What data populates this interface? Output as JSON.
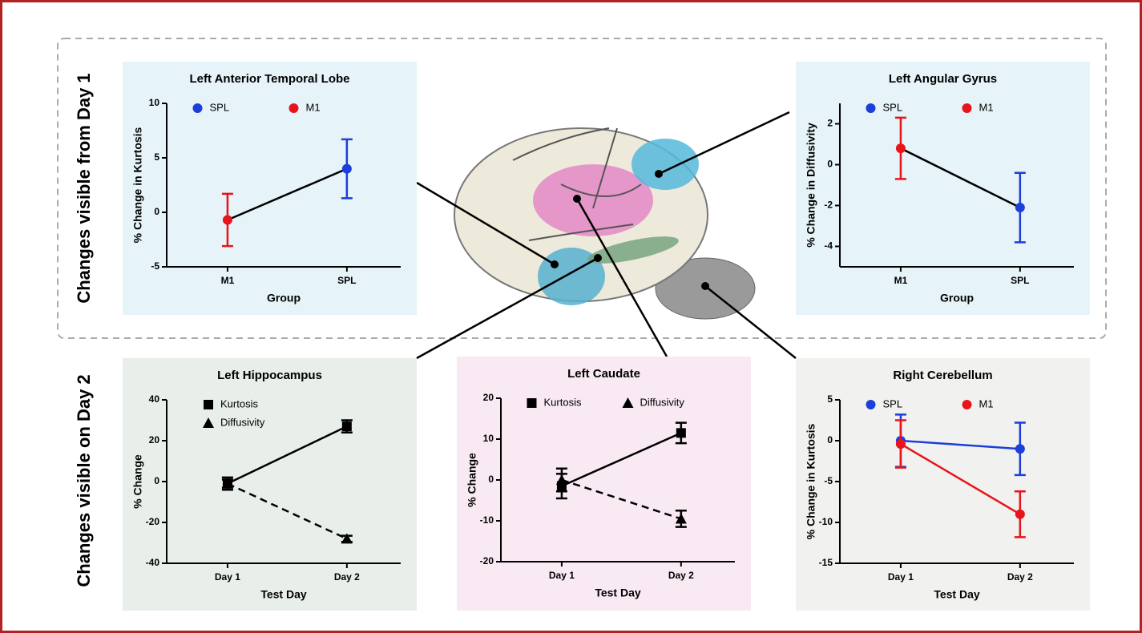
{
  "sections": [
    "Changes visible from Day 1",
    "Changes visible on Day 2"
  ],
  "chart_data": [
    {
      "type": "line",
      "title": "Left Anterior Temporal Lobe",
      "xlabel": "Group",
      "ylabel": "% Change in Kurtosis",
      "categories": [
        "M1",
        "SPL"
      ],
      "ylim": [
        -5,
        10
      ],
      "yticks": [
        -5,
        0,
        5,
        10
      ],
      "legend": "top",
      "line_color": "#000000",
      "series": [
        {
          "name": "SPL",
          "color": "#1b3fd8",
          "marker": "circle",
          "values": [
            null,
            4.0
          ],
          "errors": [
            null,
            2.7
          ]
        },
        {
          "name": "M1",
          "color": "#e8141b",
          "marker": "circle",
          "values": [
            -0.7,
            null
          ],
          "errors": [
            2.4,
            null
          ]
        }
      ]
    },
    {
      "type": "line",
      "title": "Left Angular Gyrus",
      "xlabel": "Group",
      "ylabel": "% Change in Diffusivity",
      "categories": [
        "M1",
        "SPL"
      ],
      "ylim": [
        -5,
        3
      ],
      "yticks": [
        -4,
        -2,
        0,
        2
      ],
      "legend": "top",
      "line_color": "#000000",
      "series": [
        {
          "name": "SPL",
          "color": "#1b3fd8",
          "marker": "circle",
          "values": [
            null,
            -2.1
          ],
          "errors": [
            null,
            1.7
          ]
        },
        {
          "name": "M1",
          "color": "#e8141b",
          "marker": "circle",
          "values": [
            0.8,
            null
          ],
          "errors": [
            1.5,
            null
          ]
        }
      ]
    },
    {
      "type": "line",
      "title": "Left Hippocampus",
      "xlabel": "Test Day",
      "ylabel": "% Change",
      "categories": [
        "Day 1",
        "Day 2"
      ],
      "ylim": [
        -40,
        40
      ],
      "yticks": [
        -40,
        -20,
        0,
        20,
        40
      ],
      "legend": "top-left",
      "series": [
        {
          "name": "Kurtosis",
          "color": "#000000",
          "marker": "square",
          "dash": false,
          "values": [
            -1,
            27
          ],
          "errors": [
            3,
            3
          ]
        },
        {
          "name": "Diffusivity",
          "color": "#000000",
          "marker": "triangle",
          "dash": true,
          "values": [
            -1,
            -28
          ],
          "errors": [
            2,
            1.5
          ]
        }
      ]
    },
    {
      "type": "line",
      "title": "Left Caudate",
      "xlabel": "Test Day",
      "ylabel": "% Change",
      "categories": [
        "Day 1",
        "Day 2"
      ],
      "ylim": [
        -20,
        20
      ],
      "yticks": [
        -20,
        -10,
        0,
        10,
        20
      ],
      "legend": "top",
      "series": [
        {
          "name": "Kurtosis",
          "color": "#000000",
          "marker": "square",
          "dash": false,
          "values": [
            -1.5,
            11.5
          ],
          "errors": [
            3,
            2.5
          ]
        },
        {
          "name": "Diffusivity",
          "color": "#000000",
          "marker": "triangle",
          "dash": true,
          "values": [
            0,
            -9.5
          ],
          "errors": [
            2.8,
            2
          ]
        }
      ]
    },
    {
      "type": "line",
      "title": "Right Cerebellum",
      "xlabel": "Test Day",
      "ylabel": "% Change in Kurtosis",
      "categories": [
        "Day 1",
        "Day 2"
      ],
      "ylim": [
        -15,
        5
      ],
      "yticks": [
        -15,
        -10,
        -5,
        0,
        5
      ],
      "legend": "top",
      "series": [
        {
          "name": "SPL",
          "color": "#1b3fd8",
          "marker": "circle",
          "dash": false,
          "values": [
            0,
            -1
          ],
          "errors": [
            3.2,
            3.2
          ]
        },
        {
          "name": "M1",
          "color": "#e8141b",
          "marker": "circle",
          "dash": false,
          "values": [
            -0.4,
            -9
          ],
          "errors": [
            2.9,
            2.8
          ]
        }
      ]
    }
  ]
}
